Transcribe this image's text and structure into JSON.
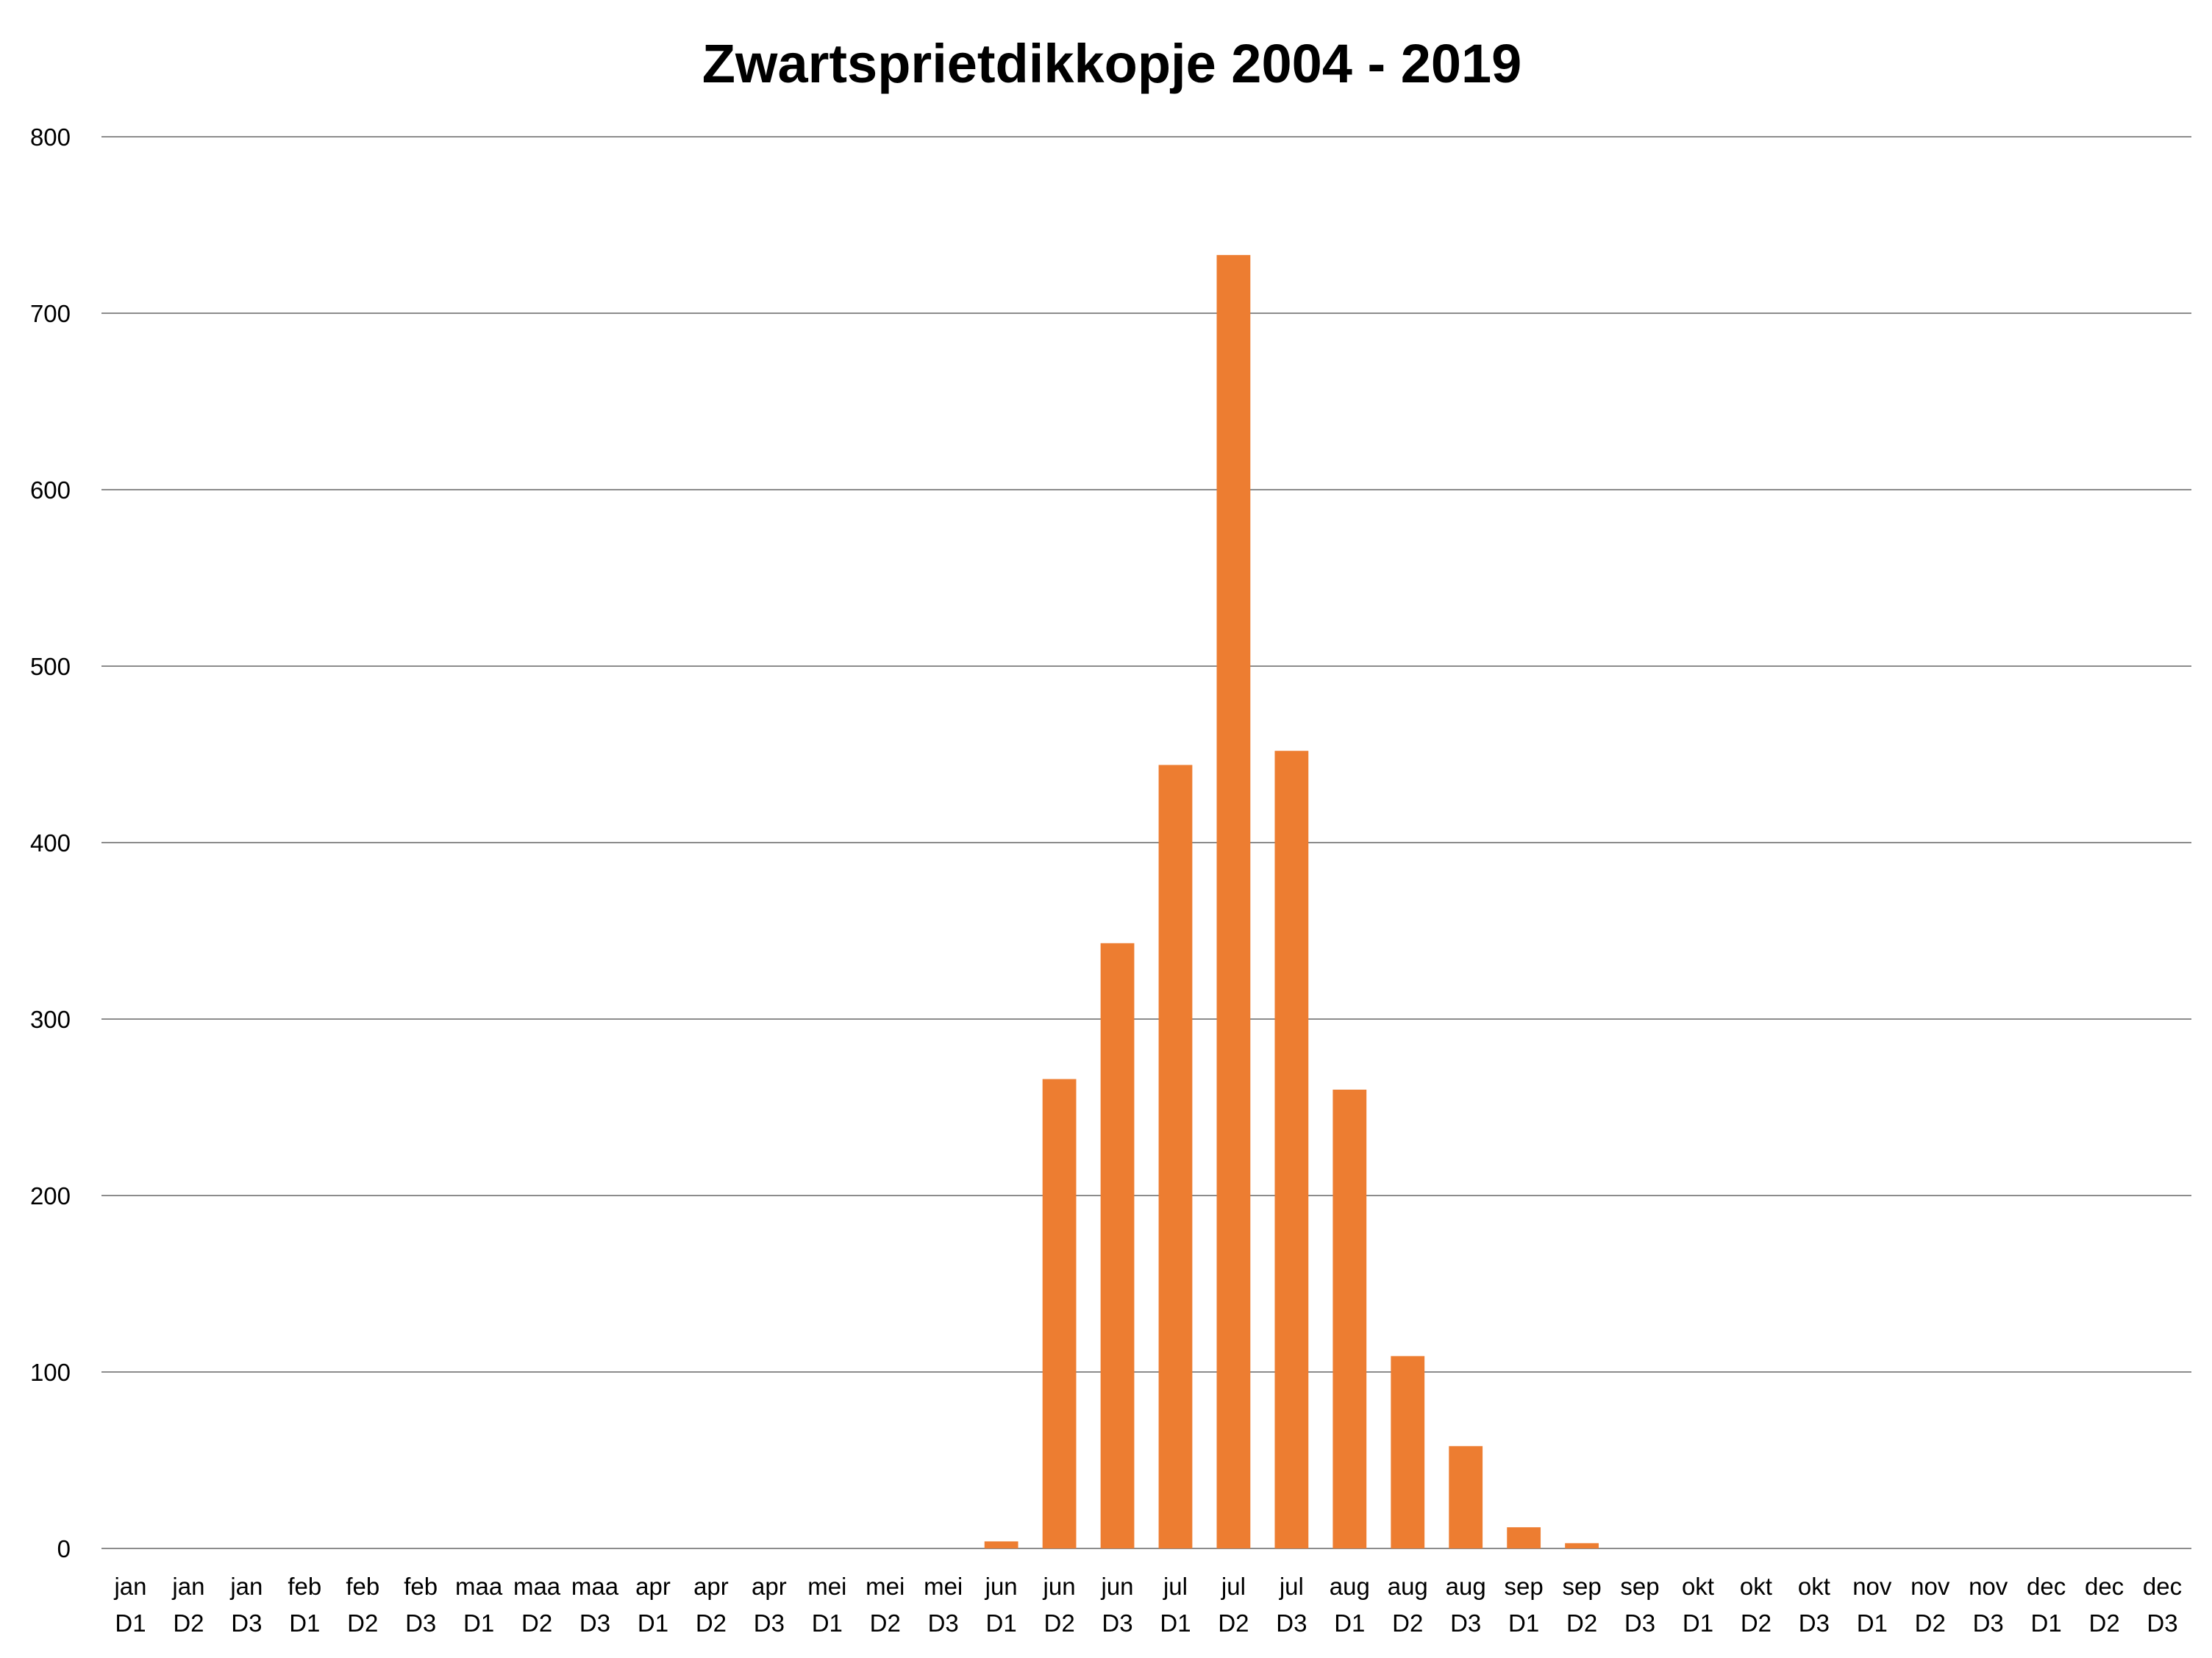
{
  "chart_data": {
    "type": "bar",
    "title": "Zwartsprietdikkopje 2004 - 2019",
    "xlabel": "",
    "ylabel": "",
    "ylim": [
      0,
      800
    ],
    "yticks": [
      0,
      100,
      200,
      300,
      400,
      500,
      600,
      700,
      800
    ],
    "grid": true,
    "legend": "none",
    "bar_color": "#ED7D31",
    "categories": [
      {
        "month": "jan",
        "decade": "D1"
      },
      {
        "month": "jan",
        "decade": "D2"
      },
      {
        "month": "jan",
        "decade": "D3"
      },
      {
        "month": "feb",
        "decade": "D1"
      },
      {
        "month": "feb",
        "decade": "D2"
      },
      {
        "month": "feb",
        "decade": "D3"
      },
      {
        "month": "maa",
        "decade": "D1"
      },
      {
        "month": "maa",
        "decade": "D2"
      },
      {
        "month": "maa",
        "decade": "D3"
      },
      {
        "month": "apr",
        "decade": "D1"
      },
      {
        "month": "apr",
        "decade": "D2"
      },
      {
        "month": "apr",
        "decade": "D3"
      },
      {
        "month": "mei",
        "decade": "D1"
      },
      {
        "month": "mei",
        "decade": "D2"
      },
      {
        "month": "mei",
        "decade": "D3"
      },
      {
        "month": "jun",
        "decade": "D1"
      },
      {
        "month": "jun",
        "decade": "D2"
      },
      {
        "month": "jun",
        "decade": "D3"
      },
      {
        "month": "jul",
        "decade": "D1"
      },
      {
        "month": "jul",
        "decade": "D2"
      },
      {
        "month": "jul",
        "decade": "D3"
      },
      {
        "month": "aug",
        "decade": "D1"
      },
      {
        "month": "aug",
        "decade": "D2"
      },
      {
        "month": "aug",
        "decade": "D3"
      },
      {
        "month": "sep",
        "decade": "D1"
      },
      {
        "month": "sep",
        "decade": "D2"
      },
      {
        "month": "sep",
        "decade": "D3"
      },
      {
        "month": "okt",
        "decade": "D1"
      },
      {
        "month": "okt",
        "decade": "D2"
      },
      {
        "month": "okt",
        "decade": "D3"
      },
      {
        "month": "nov",
        "decade": "D1"
      },
      {
        "month": "nov",
        "decade": "D2"
      },
      {
        "month": "nov",
        "decade": "D3"
      },
      {
        "month": "dec",
        "decade": "D1"
      },
      {
        "month": "dec",
        "decade": "D2"
      },
      {
        "month": "dec",
        "decade": "D3"
      }
    ],
    "values": [
      0,
      0,
      0,
      0,
      0,
      0,
      0,
      0,
      0,
      0,
      0,
      0,
      0,
      0,
      0,
      4,
      266,
      343,
      444,
      733,
      452,
      260,
      109,
      58,
      12,
      3,
      0,
      0,
      0,
      0,
      0,
      0,
      0,
      0,
      0,
      0
    ]
  }
}
